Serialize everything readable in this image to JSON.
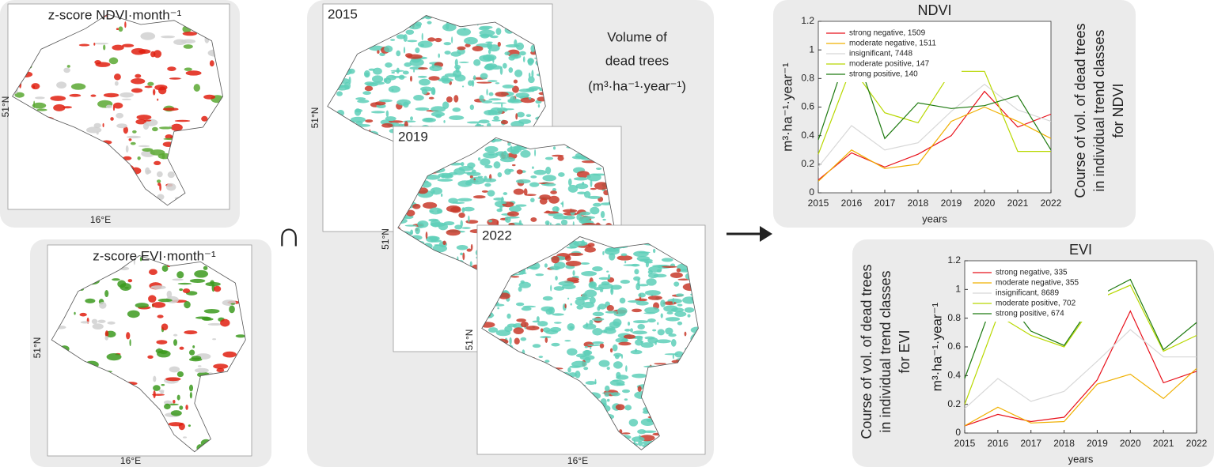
{
  "maps": {
    "ndvi_map": {
      "title": "z-score NDVI·month⁻¹",
      "lon": "16°E",
      "lat": "51°N"
    },
    "evi_map": {
      "title": "z-score EVI·month⁻¹",
      "lon": "16°E",
      "lat": "51°N"
    },
    "intersection": "∩",
    "volume": {
      "title_lines": [
        "Volume of",
        "dead trees",
        "(m³·ha⁻¹·year⁻¹)"
      ],
      "years": [
        "2015",
        "2019",
        "2022"
      ],
      "lon": "16°E",
      "lat": "51°N"
    }
  },
  "chart_data": [
    {
      "type": "line",
      "title": "NDVI",
      "xlabel": "years",
      "ylabel": "m³·ha⁻¹·year⁻¹",
      "side_label": [
        "Course of vol. of dead trees",
        "in individual trend classes",
        "for NDVI"
      ],
      "x": [
        2015,
        2016,
        2017,
        2018,
        2019,
        2020,
        2021,
        2022
      ],
      "xlim": [
        2015,
        2022
      ],
      "xticks": [
        2015,
        2016,
        2017,
        2018,
        2019,
        2020,
        2021,
        2022
      ],
      "ylim": [
        0,
        1.2
      ],
      "yticks": [
        0,
        0.2,
        0.4,
        0.6,
        0.8,
        1,
        1.2
      ],
      "legend": "upper left",
      "series": [
        {
          "name": "strong negative, 1509",
          "color": "#e8101a",
          "values": [
            0.09,
            0.28,
            0.18,
            0.27,
            0.4,
            0.71,
            0.46,
            0.55
          ]
        },
        {
          "name": "moderate negative, 1511",
          "color": "#f0b000",
          "values": [
            0.08,
            0.3,
            0.17,
            0.2,
            0.5,
            0.6,
            0.5,
            0.38
          ]
        },
        {
          "name": "insignificant, 7448",
          "color": "#d8d8d8",
          "values": [
            0.18,
            0.47,
            0.3,
            0.35,
            0.57,
            0.76,
            0.58,
            0.5
          ]
        },
        {
          "name": "moderate positive, 147",
          "color": "#b8d800",
          "values": [
            0.27,
            0.88,
            0.56,
            0.49,
            0.85,
            0.85,
            0.29,
            0.29
          ]
        },
        {
          "name": "strong positive, 140",
          "color": "#1e7a10",
          "values": [
            0.37,
            1.07,
            0.38,
            0.63,
            0.59,
            0.61,
            0.68,
            0.3
          ]
        }
      ]
    },
    {
      "type": "line",
      "title": "EVI",
      "xlabel": "years",
      "ylabel": "m³·ha⁻¹·year⁻¹",
      "side_label": [
        "Course of vol. of dead trees",
        "in individual trend classes",
        "for EVI"
      ],
      "x": [
        2015,
        2016,
        2017,
        2018,
        2019,
        2020,
        2021,
        2022
      ],
      "xlim": [
        2015,
        2022
      ],
      "xticks": [
        2015,
        2016,
        2017,
        2018,
        2019,
        2020,
        2021,
        2022
      ],
      "ylim": [
        0,
        1.2
      ],
      "yticks": [
        0,
        0.2,
        0.4,
        0.6,
        0.8,
        1,
        1.2
      ],
      "legend": "upper left",
      "series": [
        {
          "name": "strong negative, 335",
          "color": "#e8101a",
          "values": [
            0.05,
            0.13,
            0.08,
            0.11,
            0.37,
            0.85,
            0.35,
            0.43
          ]
        },
        {
          "name": "moderate negative, 355",
          "color": "#f0b000",
          "values": [
            0.05,
            0.18,
            0.07,
            0.08,
            0.34,
            0.41,
            0.24,
            0.45
          ]
        },
        {
          "name": "insignificant, 8689",
          "color": "#d8d8d8",
          "values": [
            0.17,
            0.38,
            0.22,
            0.29,
            0.5,
            0.72,
            0.53,
            0.53
          ]
        },
        {
          "name": "moderate positive, 702",
          "color": "#b8d800",
          "values": [
            0.2,
            0.82,
            0.68,
            0.6,
            0.93,
            1.03,
            0.57,
            0.68
          ]
        },
        {
          "name": "strong positive, 674",
          "color": "#1e7a10",
          "values": [
            0.38,
            1.01,
            0.71,
            0.61,
            0.95,
            1.07,
            0.58,
            0.77
          ]
        }
      ]
    }
  ]
}
